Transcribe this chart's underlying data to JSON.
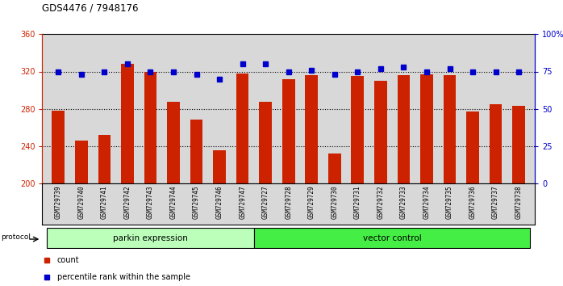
{
  "title": "GDS4476 / 7948176",
  "samples": [
    "GSM729739",
    "GSM729740",
    "GSM729741",
    "GSM729742",
    "GSM729743",
    "GSM729744",
    "GSM729745",
    "GSM729746",
    "GSM729747",
    "GSM729727",
    "GSM729728",
    "GSM729729",
    "GSM729730",
    "GSM729731",
    "GSM729732",
    "GSM729733",
    "GSM729734",
    "GSM729735",
    "GSM729736",
    "GSM729737",
    "GSM729738"
  ],
  "counts": [
    278,
    246,
    252,
    328,
    320,
    287,
    268,
    235,
    318,
    287,
    312,
    316,
    232,
    315,
    310,
    316,
    317,
    316,
    277,
    285,
    283
  ],
  "percentile_ranks": [
    75,
    73,
    75,
    80,
    75,
    75,
    73,
    70,
    80,
    80,
    75,
    76,
    73,
    75,
    77,
    78,
    75,
    77,
    75,
    75,
    75
  ],
  "group1_label": "parkin expression",
  "group1_count": 9,
  "group2_label": "vector control",
  "group2_count": 12,
  "protocol_label": "protocol",
  "bar_color": "#cc2200",
  "dot_color": "#0000cc",
  "group1_color": "#bbffbb",
  "group2_color": "#44ee44",
  "ylim_left": [
    200,
    360
  ],
  "ylim_right": [
    0,
    100
  ],
  "yticks_left": [
    200,
    240,
    280,
    320,
    360
  ],
  "yticks_right": [
    0,
    25,
    50,
    75,
    100
  ],
  "ytick_labels_left": [
    "200",
    "240",
    "280",
    "320",
    "360"
  ],
  "ytick_labels_right": [
    "0",
    "25",
    "50",
    "75",
    "100%"
  ],
  "legend_count_label": "count",
  "legend_percentile_label": "percentile rank within the sample",
  "background_color": "#ffffff",
  "plot_bg_color": "#d8d8d8"
}
